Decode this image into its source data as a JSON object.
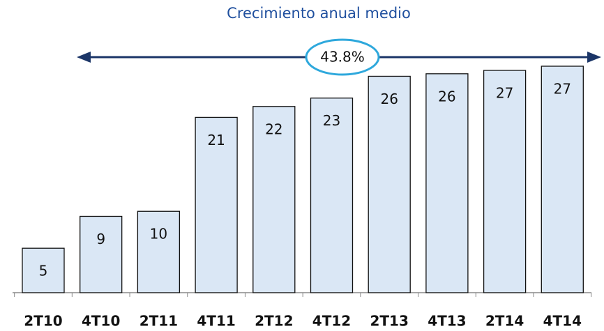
{
  "chart_data": {
    "type": "bar",
    "title": "Crecimiento anual medio",
    "annotation": "43.8%",
    "categories": [
      "2T10",
      "4T10",
      "2T11",
      "4T11",
      "2T12",
      "4T12",
      "2T13",
      "4T13",
      "2T14",
      "4T14"
    ],
    "values": [
      5.3,
      9.1,
      9.7,
      20.9,
      22.2,
      23.2,
      25.8,
      26.1,
      26.5,
      27.0
    ],
    "value_labels": [
      "5",
      "9",
      "10",
      "21",
      "22",
      "23",
      "26",
      "26",
      "27",
      "27"
    ],
    "color": "#dae7f5"
  }
}
